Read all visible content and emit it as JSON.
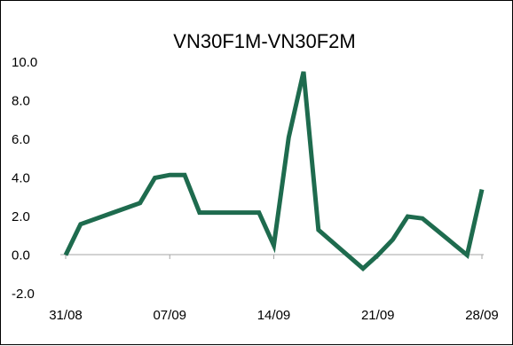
{
  "chart_data": {
    "type": "line",
    "title": "VN30F1M-VN30F2M",
    "xlabel": "",
    "ylabel": "",
    "ylim": [
      -2.0,
      10.0
    ],
    "yticks": [
      "10.0",
      "8.0",
      "6.0",
      "4.0",
      "2.0",
      "0.0",
      "-2.0"
    ],
    "xticks": [
      "31/08",
      "07/09",
      "14/09",
      "21/09",
      "28/09"
    ],
    "grid": false,
    "legend": "none",
    "line_color": "#1e6b4e",
    "series": [
      {
        "x": [
          "31/08",
          "01/09",
          "05/09",
          "06/09",
          "07/09",
          "08/09",
          "09/09",
          "10/09",
          "13/09",
          "14/09",
          "15/09",
          "16/09",
          "17/09",
          "20/09",
          "21/09",
          "22/09",
          "23/09",
          "24/09",
          "27/09",
          "28/09"
        ],
        "values": [
          0.0,
          1.6,
          2.7,
          4.0,
          4.15,
          4.15,
          2.2,
          2.2,
          2.2,
          0.5,
          6.1,
          9.5,
          1.3,
          -0.7,
          0.0,
          0.8,
          2.0,
          1.9,
          0.0,
          3.4
        ]
      }
    ]
  }
}
